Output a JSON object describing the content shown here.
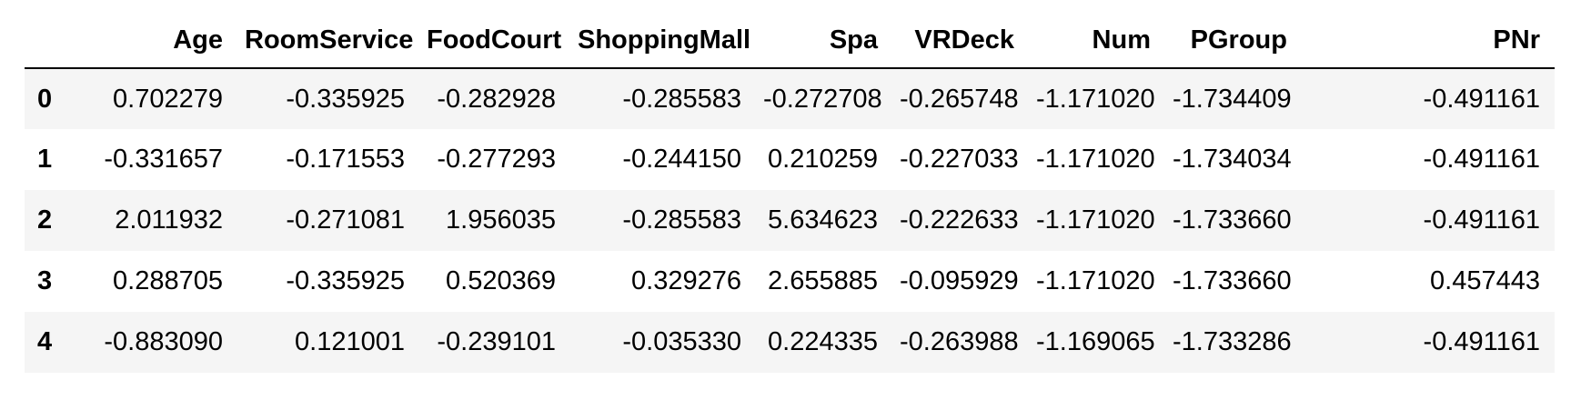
{
  "table": {
    "columns": [
      "Age",
      "RoomService",
      "FoodCourt",
      "ShoppingMall",
      "Spa",
      "VRDeck",
      "Num",
      "PGroup",
      "PNr"
    ],
    "rows": [
      {
        "index": "0",
        "cells": [
          "0.702279",
          "-0.335925",
          "-0.282928",
          "-0.285583",
          "-0.272708",
          "-0.265748",
          "-1.171020",
          "-1.734409",
          "-0.491161"
        ]
      },
      {
        "index": "1",
        "cells": [
          "-0.331657",
          "-0.171553",
          "-0.277293",
          "-0.244150",
          "0.210259",
          "-0.227033",
          "-1.171020",
          "-1.734034",
          "-0.491161"
        ]
      },
      {
        "index": "2",
        "cells": [
          "2.011932",
          "-0.271081",
          "1.956035",
          "-0.285583",
          "5.634623",
          "-0.222633",
          "-1.171020",
          "-1.733660",
          "-0.491161"
        ]
      },
      {
        "index": "3",
        "cells": [
          "0.288705",
          "-0.335925",
          "0.520369",
          "0.329276",
          "2.655885",
          "-0.095929",
          "-1.171020",
          "-1.733660",
          "0.457443"
        ]
      },
      {
        "index": "4",
        "cells": [
          "-0.883090",
          "0.121001",
          "-0.239101",
          "-0.035330",
          "0.224335",
          "-0.263988",
          "-1.169065",
          "-1.733286",
          "-0.491161"
        ]
      }
    ]
  },
  "colors": {
    "header_rule": "#000000",
    "row_stripe": "#f5f5f5",
    "row_plain": "#ffffff",
    "text": "#000000"
  }
}
